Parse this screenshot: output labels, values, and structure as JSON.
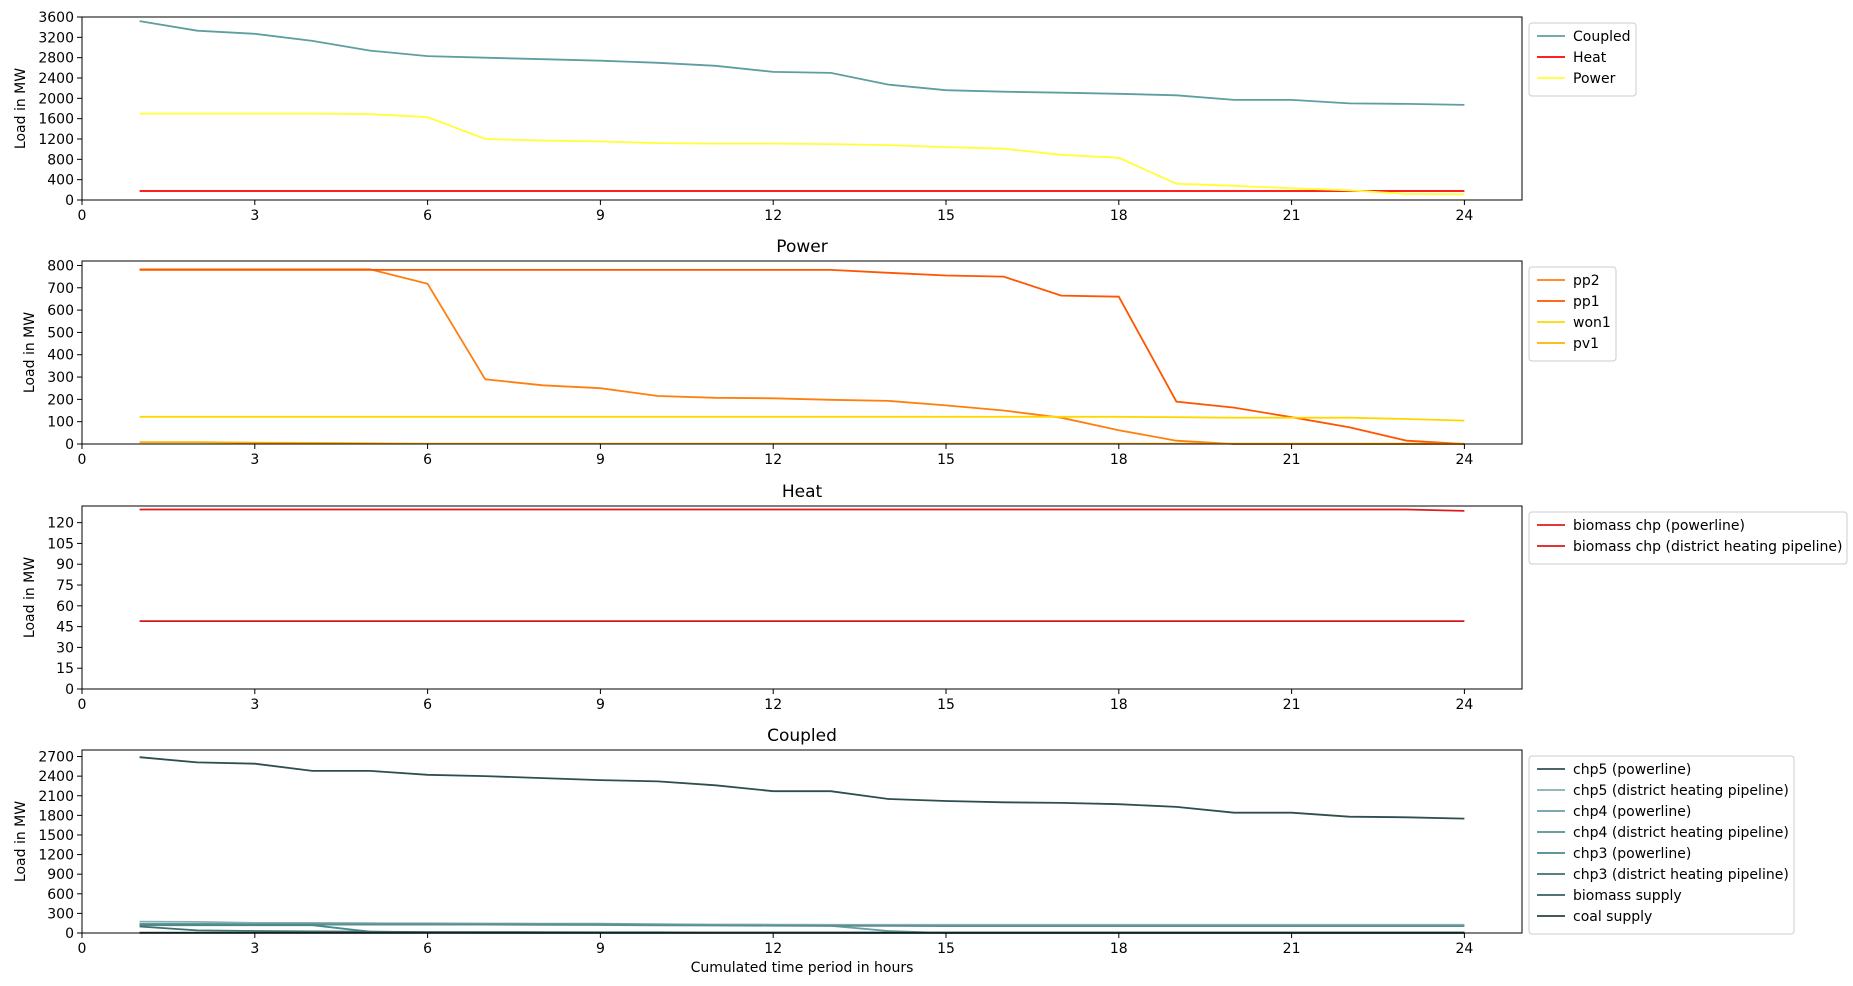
{
  "figure": {
    "xlabel": "Cumulated time period in hours"
  },
  "chart_data": [
    {
      "type": "line",
      "title": "",
      "xlabel": "",
      "ylabel": "Load in MW",
      "xlim": [
        0,
        25
      ],
      "ylim": [
        0,
        3600
      ],
      "xticks": [
        0,
        3,
        6,
        9,
        12,
        15,
        18,
        21,
        24
      ],
      "yticks": [
        0,
        400,
        800,
        1200,
        1600,
        2000,
        2400,
        2800,
        3200,
        3600
      ],
      "grid": false,
      "legend": "outside-right",
      "x": [
        1,
        2,
        3,
        4,
        5,
        6,
        7,
        8,
        9,
        10,
        11,
        12,
        13,
        14,
        15,
        16,
        17,
        18,
        19,
        20,
        21,
        22,
        23,
        24
      ],
      "series": [
        {
          "name": "Coupled",
          "color": "#5f9ea0",
          "values": [
            3520,
            3330,
            3270,
            3130,
            2940,
            2830,
            2800,
            2770,
            2740,
            2700,
            2640,
            2520,
            2500,
            2270,
            2160,
            2130,
            2110,
            2090,
            2060,
            1970,
            1970,
            1900,
            1890,
            1870
          ]
        },
        {
          "name": "Heat",
          "color": "#ff0000",
          "values": [
            178,
            178,
            178,
            178,
            178,
            178,
            178,
            178,
            178,
            178,
            178,
            178,
            178,
            178,
            178,
            178,
            178,
            178,
            178,
            178,
            178,
            178,
            178,
            178
          ]
        },
        {
          "name": "Power",
          "color": "#ffff33",
          "values": [
            1700,
            1700,
            1700,
            1700,
            1690,
            1630,
            1200,
            1170,
            1150,
            1120,
            1110,
            1110,
            1100,
            1080,
            1040,
            1010,
            890,
            830,
            320,
            280,
            230,
            190,
            120,
            110
          ]
        }
      ]
    },
    {
      "type": "line",
      "title": "Power",
      "xlabel": "",
      "ylabel": "Load in MW",
      "xlim": [
        0,
        25
      ],
      "ylim": [
        0,
        820
      ],
      "xticks": [
        0,
        3,
        6,
        9,
        12,
        15,
        18,
        21,
        24
      ],
      "yticks": [
        0,
        100,
        200,
        300,
        400,
        500,
        600,
        700,
        800
      ],
      "grid": false,
      "legend": "outside-right",
      "x": [
        1,
        2,
        3,
        4,
        5,
        6,
        7,
        8,
        9,
        10,
        11,
        12,
        13,
        14,
        15,
        16,
        17,
        18,
        19,
        20,
        21,
        22,
        23,
        24
      ],
      "series": [
        {
          "name": "pp2",
          "color": "#ff7f0e",
          "values": [
            783,
            783,
            783,
            783,
            783,
            718,
            290,
            263,
            250,
            215,
            207,
            205,
            198,
            193,
            173,
            150,
            118,
            62,
            15,
            0,
            0,
            0,
            0,
            0
          ]
        },
        {
          "name": "pp1",
          "color": "#ff5500",
          "values": [
            780,
            780,
            780,
            780,
            780,
            780,
            780,
            780,
            780,
            780,
            780,
            780,
            780,
            767,
            755,
            750,
            665,
            660,
            190,
            163,
            120,
            75,
            15,
            0
          ]
        },
        {
          "name": "won1",
          "color": "#ffd700",
          "values": [
            122,
            122,
            122,
            122,
            122,
            122,
            122,
            122,
            122,
            122,
            122,
            122,
            122,
            122,
            122,
            122,
            122,
            122,
            120,
            118,
            118,
            118,
            112,
            105
          ]
        },
        {
          "name": "pv1",
          "color": "#ffb000",
          "values": [
            8,
            8,
            6,
            5,
            3,
            2,
            2,
            2,
            2,
            2,
            2,
            2,
            2,
            2,
            2,
            2,
            2,
            2,
            2,
            2,
            2,
            2,
            2,
            2
          ]
        }
      ]
    },
    {
      "type": "line",
      "title": "Heat",
      "xlabel": "",
      "ylabel": "Load in MW",
      "xlim": [
        0,
        25
      ],
      "ylim": [
        0,
        132
      ],
      "xticks": [
        0,
        3,
        6,
        9,
        12,
        15,
        18,
        21,
        24
      ],
      "yticks": [
        0,
        15,
        30,
        45,
        60,
        75,
        90,
        105,
        120
      ],
      "grid": false,
      "legend": "outside-right",
      "x": [
        1,
        2,
        3,
        4,
        5,
        6,
        7,
        8,
        9,
        10,
        11,
        12,
        13,
        14,
        15,
        16,
        17,
        18,
        19,
        20,
        21,
        22,
        23,
        24
      ],
      "series": [
        {
          "name": "biomass chp (powerline)",
          "color": "#e31a1c",
          "values": [
            129.5,
            129.5,
            129.5,
            129.5,
            129.5,
            129.5,
            129.5,
            129.5,
            129.5,
            129.5,
            129.5,
            129.5,
            129.5,
            129.5,
            129.5,
            129.5,
            129.5,
            129.5,
            129.5,
            129.5,
            129.5,
            129.5,
            129.5,
            128.5
          ]
        },
        {
          "name": "biomass chp (district heating pipeline)",
          "color": "#d7191c",
          "values": [
            49,
            49,
            49,
            49,
            49,
            49,
            49,
            49,
            49,
            49,
            49,
            49,
            49,
            49,
            49,
            49,
            49,
            49,
            49,
            49,
            49,
            49,
            49,
            49
          ]
        }
      ]
    },
    {
      "type": "line",
      "title": "Coupled",
      "xlabel": "Cumulated time period in hours",
      "ylabel": "Load in MW",
      "xlim": [
        0,
        25
      ],
      "ylim": [
        0,
        2800
      ],
      "xticks": [
        0,
        3,
        6,
        9,
        12,
        15,
        18,
        21,
        24
      ],
      "yticks": [
        0,
        300,
        600,
        900,
        1200,
        1500,
        1800,
        2100,
        2400,
        2700
      ],
      "grid": false,
      "legend": "outside-right",
      "x": [
        1,
        2,
        3,
        4,
        5,
        6,
        7,
        8,
        9,
        10,
        11,
        12,
        13,
        14,
        15,
        16,
        17,
        18,
        19,
        20,
        21,
        22,
        23,
        24
      ],
      "series": [
        {
          "name": "chp5 (powerline)",
          "color": "#2f4f4f",
          "values": [
            2690,
            2610,
            2590,
            2480,
            2480,
            2420,
            2400,
            2370,
            2340,
            2320,
            2260,
            2170,
            2170,
            2050,
            2020,
            2000,
            1990,
            1970,
            1930,
            1840,
            1840,
            1780,
            1770,
            1750
          ]
        },
        {
          "name": "chp5 (district heating pipeline)",
          "color": "#87aeb0",
          "values": [
            175,
            170,
            155,
            155,
            150,
            148,
            146,
            144,
            142,
            135,
            130,
            128,
            126,
            126,
            125,
            125,
            125,
            125,
            125,
            125,
            125,
            125,
            125,
            125
          ]
        },
        {
          "name": "chp4 (powerline)",
          "color": "#6a9ea0",
          "values": [
            140,
            140,
            138,
            138,
            140,
            140,
            140,
            140,
            140,
            128,
            120,
            115,
            110,
            30,
            0,
            0,
            0,
            0,
            0,
            0,
            0,
            0,
            0,
            0
          ]
        },
        {
          "name": "chp4 (district heating pipeline)",
          "color": "#5a8f91",
          "values": [
            130,
            130,
            128,
            128,
            128,
            128,
            128,
            125,
            122,
            118,
            115,
            112,
            110,
            108,
            105,
            105,
            105,
            105,
            105,
            105,
            105,
            105,
            105,
            105
          ]
        },
        {
          "name": "chp3 (powerline)",
          "color": "#4a8a8a",
          "values": [
            120,
            120,
            120,
            120,
            20,
            10,
            5,
            5,
            5,
            5,
            5,
            5,
            5,
            5,
            5,
            5,
            5,
            5,
            5,
            5,
            5,
            5,
            5,
            5
          ]
        },
        {
          "name": "chp3 (district heating pipeline)",
          "color": "#3f7070",
          "values": [
            100,
            40,
            30,
            25,
            20,
            15,
            15,
            12,
            10,
            10,
            8,
            8,
            8,
            8,
            8,
            8,
            8,
            8,
            8,
            8,
            8,
            8,
            8,
            8
          ]
        },
        {
          "name": "biomass supply",
          "color": "#36615f",
          "values": [
            5,
            5,
            5,
            5,
            5,
            5,
            5,
            5,
            5,
            5,
            5,
            5,
            5,
            5,
            5,
            5,
            5,
            5,
            5,
            5,
            5,
            5,
            5,
            5
          ]
        },
        {
          "name": "coal supply",
          "color": "#274545",
          "values": [
            2,
            2,
            2,
            2,
            2,
            2,
            2,
            2,
            2,
            2,
            2,
            2,
            2,
            2,
            2,
            2,
            2,
            2,
            2,
            2,
            2,
            2,
            2,
            2
          ]
        }
      ]
    }
  ]
}
